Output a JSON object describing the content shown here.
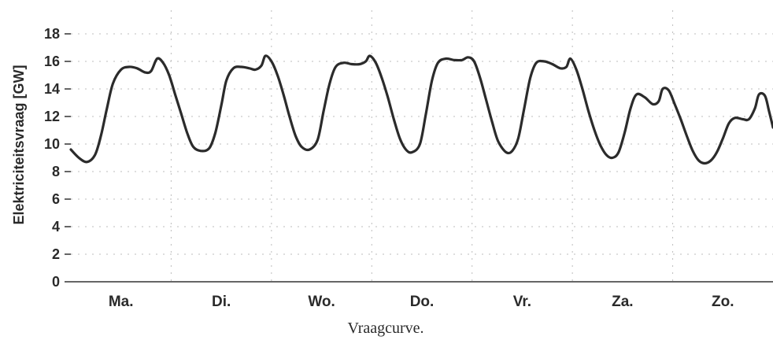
{
  "chart_data": {
    "type": "line",
    "title": "",
    "xlabel": "",
    "ylabel": "Elektriciteitsvraag [GW]",
    "caption": "Vraagcurve.",
    "ylim": [
      0,
      18
    ],
    "yticks": [
      0,
      2,
      4,
      6,
      8,
      10,
      12,
      14,
      16,
      18
    ],
    "xlim": [
      0,
      7
    ],
    "categories": [
      "Ma.",
      "Di.",
      "Wo.",
      "Do.",
      "Vr.",
      "Za.",
      "Zo."
    ],
    "grid": true,
    "legend": "none",
    "line_color": "#2b2b2b",
    "series": [
      {
        "values": [
          [
            0.0,
            9.6
          ],
          [
            0.08,
            9.0
          ],
          [
            0.16,
            8.7
          ],
          [
            0.24,
            9.2
          ],
          [
            0.3,
            10.6
          ],
          [
            0.36,
            12.6
          ],
          [
            0.42,
            14.4
          ],
          [
            0.5,
            15.4
          ],
          [
            0.58,
            15.6
          ],
          [
            0.66,
            15.5
          ],
          [
            0.74,
            15.2
          ],
          [
            0.8,
            15.3
          ],
          [
            0.86,
            16.2
          ],
          [
            0.92,
            15.9
          ],
          [
            0.98,
            15.0
          ],
          [
            1.04,
            13.6
          ],
          [
            1.1,
            12.2
          ],
          [
            1.16,
            10.8
          ],
          [
            1.22,
            9.8
          ],
          [
            1.3,
            9.5
          ],
          [
            1.38,
            9.7
          ],
          [
            1.44,
            10.8
          ],
          [
            1.5,
            12.8
          ],
          [
            1.55,
            14.6
          ],
          [
            1.62,
            15.5
          ],
          [
            1.7,
            15.6
          ],
          [
            1.78,
            15.5
          ],
          [
            1.84,
            15.4
          ],
          [
            1.9,
            15.7
          ],
          [
            1.94,
            16.4
          ],
          [
            2.0,
            16.0
          ],
          [
            2.06,
            15.0
          ],
          [
            2.12,
            13.6
          ],
          [
            2.18,
            12.0
          ],
          [
            2.24,
            10.6
          ],
          [
            2.3,
            9.8
          ],
          [
            2.38,
            9.6
          ],
          [
            2.46,
            10.3
          ],
          [
            2.52,
            12.4
          ],
          [
            2.58,
            14.4
          ],
          [
            2.64,
            15.6
          ],
          [
            2.72,
            15.9
          ],
          [
            2.8,
            15.8
          ],
          [
            2.88,
            15.8
          ],
          [
            2.94,
            16.0
          ],
          [
            2.98,
            16.4
          ],
          [
            3.04,
            15.9
          ],
          [
            3.1,
            14.8
          ],
          [
            3.16,
            13.4
          ],
          [
            3.22,
            11.8
          ],
          [
            3.28,
            10.4
          ],
          [
            3.34,
            9.6
          ],
          [
            3.4,
            9.4
          ],
          [
            3.48,
            10.0
          ],
          [
            3.54,
            12.2
          ],
          [
            3.6,
            14.6
          ],
          [
            3.66,
            15.9
          ],
          [
            3.74,
            16.2
          ],
          [
            3.82,
            16.1
          ],
          [
            3.9,
            16.1
          ],
          [
            3.96,
            16.3
          ],
          [
            4.02,
            16.0
          ],
          [
            4.08,
            14.8
          ],
          [
            4.14,
            13.2
          ],
          [
            4.2,
            11.6
          ],
          [
            4.26,
            10.2
          ],
          [
            4.34,
            9.4
          ],
          [
            4.4,
            9.5
          ],
          [
            4.46,
            10.4
          ],
          [
            4.52,
            12.6
          ],
          [
            4.58,
            14.8
          ],
          [
            4.64,
            15.9
          ],
          [
            4.72,
            16.0
          ],
          [
            4.8,
            15.8
          ],
          [
            4.88,
            15.5
          ],
          [
            4.94,
            15.6
          ],
          [
            4.98,
            16.2
          ],
          [
            5.04,
            15.4
          ],
          [
            5.1,
            14.0
          ],
          [
            5.16,
            12.4
          ],
          [
            5.22,
            11.0
          ],
          [
            5.28,
            9.9
          ],
          [
            5.34,
            9.2
          ],
          [
            5.4,
            9.0
          ],
          [
            5.46,
            9.4
          ],
          [
            5.52,
            10.8
          ],
          [
            5.58,
            12.6
          ],
          [
            5.64,
            13.6
          ],
          [
            5.72,
            13.4
          ],
          [
            5.8,
            12.9
          ],
          [
            5.86,
            13.1
          ],
          [
            5.9,
            14.0
          ],
          [
            5.96,
            13.9
          ],
          [
            6.02,
            12.9
          ],
          [
            6.08,
            11.8
          ],
          [
            6.14,
            10.6
          ],
          [
            6.2,
            9.5
          ],
          [
            6.26,
            8.8
          ],
          [
            6.32,
            8.6
          ],
          [
            6.38,
            8.8
          ],
          [
            6.44,
            9.4
          ],
          [
            6.5,
            10.4
          ],
          [
            6.56,
            11.5
          ],
          [
            6.62,
            11.9
          ],
          [
            6.7,
            11.8
          ],
          [
            6.76,
            11.8
          ],
          [
            6.82,
            12.6
          ],
          [
            6.86,
            13.6
          ],
          [
            6.92,
            13.5
          ],
          [
            6.96,
            12.4
          ],
          [
            7.0,
            11.2
          ]
        ]
      }
    ]
  }
}
